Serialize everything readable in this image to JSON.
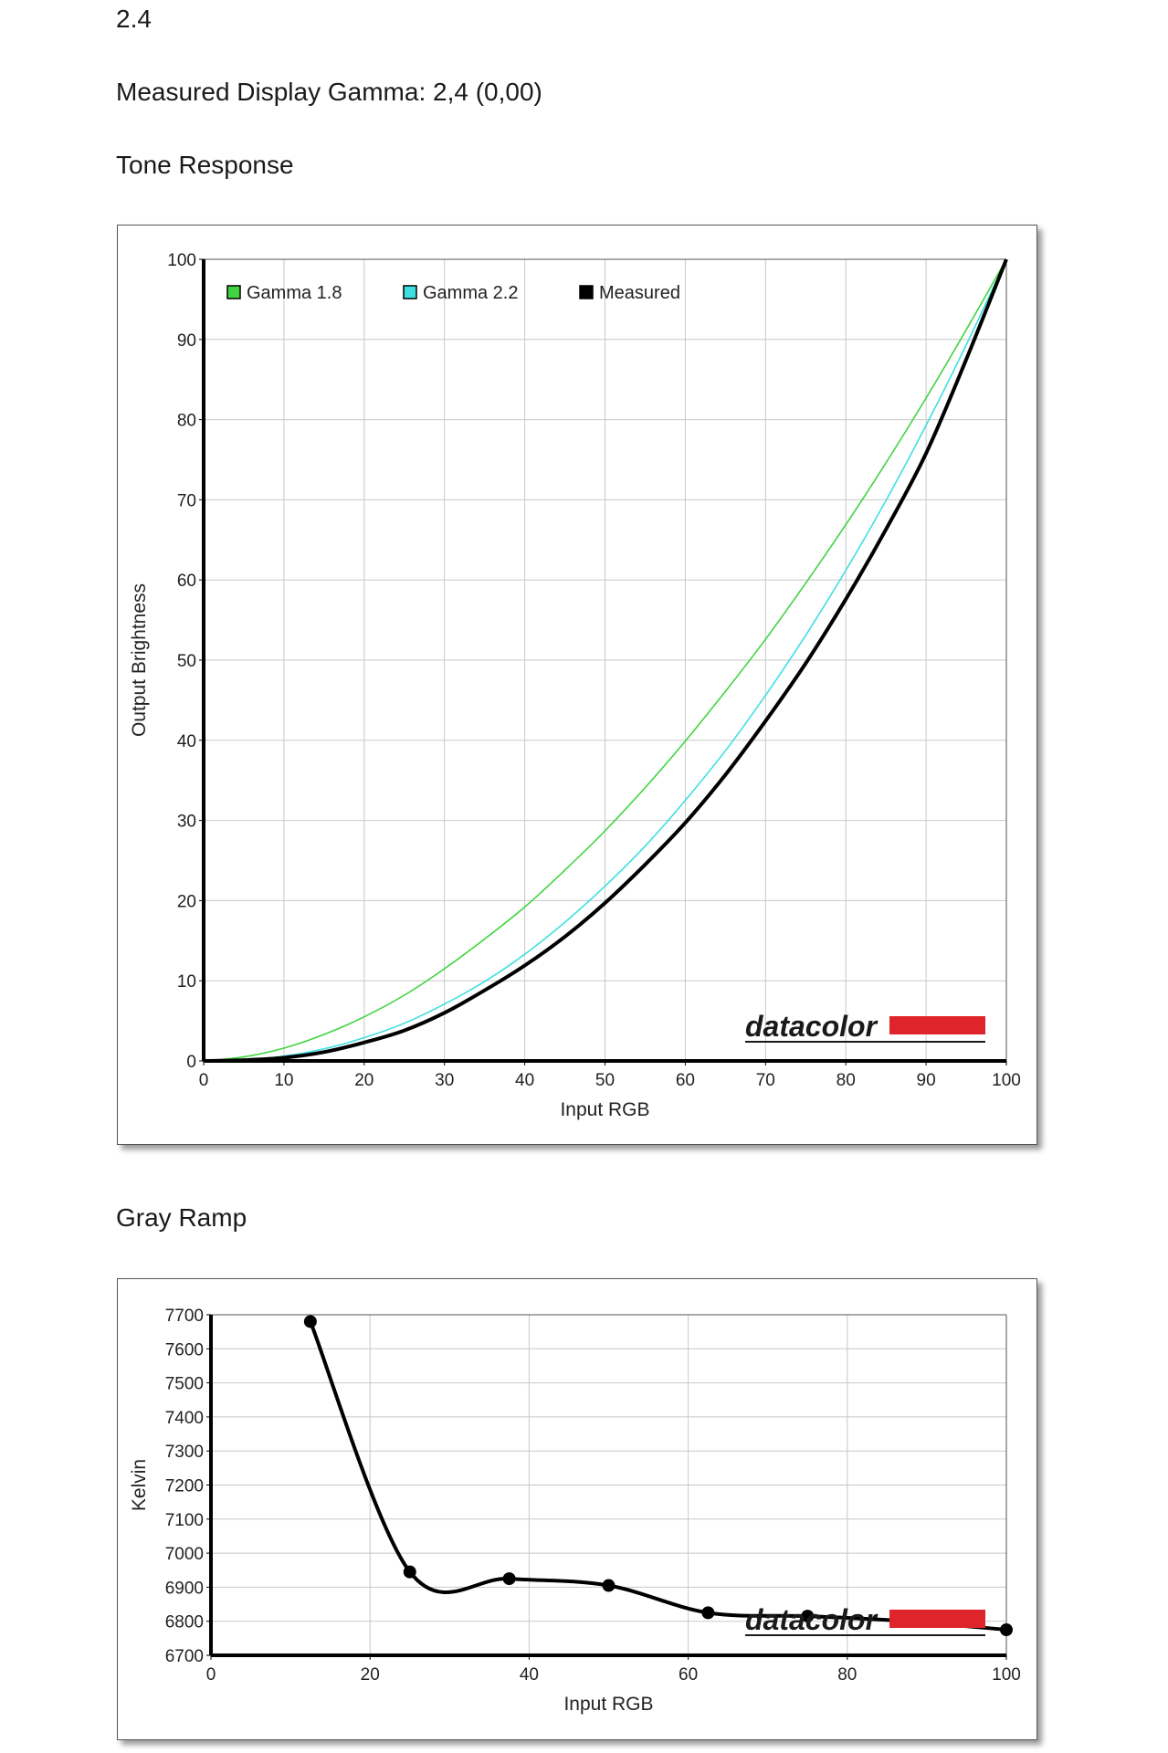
{
  "header": {
    "gamma_value": "2.4",
    "measured_text": "Measured Display Gamma: 2,4 (0,00)",
    "tone_title": "Tone Response",
    "gray_title": "Gray Ramp"
  },
  "logo": {
    "text": "datacolor",
    "accent_color": "#e0242b"
  },
  "colors": {
    "gamma18": "#3fd43f",
    "gamma22": "#3fdfe0",
    "measured": "#000000",
    "grid": "#c8c8c8"
  },
  "chart_data": [
    {
      "type": "line",
      "title": "Tone Response",
      "xlabel": "Input RGB",
      "ylabel": "Output Brightness",
      "xlim": [
        0,
        100
      ],
      "ylim": [
        0,
        100
      ],
      "xticks": [
        "0",
        "10",
        "20",
        "30",
        "40",
        "50",
        "60",
        "70",
        "80",
        "90",
        "100"
      ],
      "yticks": [
        "0",
        "10",
        "20",
        "30",
        "40",
        "50",
        "60",
        "70",
        "80",
        "90",
        "100"
      ],
      "grid": true,
      "legend": "top-left",
      "series": [
        {
          "name": "Gamma 1.8",
          "color": "#3fd43f",
          "x": [
            0,
            5,
            10,
            15,
            20,
            25,
            30,
            35,
            40,
            45,
            50,
            55,
            60,
            65,
            70,
            75,
            80,
            85,
            90,
            95,
            100
          ],
          "y": [
            0,
            0.5,
            1.6,
            3.3,
            5.5,
            8.2,
            11.5,
            15.2,
            19.2,
            23.8,
            28.7,
            34.1,
            39.9,
            46.1,
            52.6,
            59.6,
            66.9,
            74.6,
            82.7,
            91.2,
            100
          ]
        },
        {
          "name": "Gamma 2.2",
          "color": "#3fdfe0",
          "x": [
            0,
            5,
            10,
            15,
            20,
            25,
            30,
            35,
            40,
            45,
            50,
            55,
            60,
            65,
            70,
            75,
            80,
            85,
            90,
            95,
            100
          ],
          "y": [
            0,
            0.1,
            0.6,
            1.5,
            2.9,
            4.7,
            7.1,
            9.9,
            13.3,
            17.3,
            21.8,
            26.8,
            32.5,
            38.7,
            45.6,
            53.1,
            61.2,
            69.9,
            79.3,
            89.3,
            100
          ]
        },
        {
          "name": "Measured",
          "color": "#000000",
          "x": [
            0,
            5,
            10,
            15,
            20,
            25,
            30,
            35,
            40,
            45,
            50,
            55,
            60,
            65,
            70,
            75,
            80,
            85,
            90,
            95,
            100
          ],
          "y": [
            0,
            0.1,
            0.4,
            1.1,
            2.3,
            3.8,
            6.0,
            8.8,
            11.9,
            15.5,
            19.7,
            24.5,
            29.7,
            35.7,
            42.4,
            49.6,
            57.6,
            66.3,
            75.8,
            87.5,
            100
          ]
        }
      ]
    },
    {
      "type": "line",
      "title": "Gray Ramp",
      "xlabel": "Input RGB",
      "ylabel": "Kelvin",
      "xlim": [
        0,
        100
      ],
      "ylim": [
        6700,
        7700
      ],
      "xticks": [
        "0",
        "20",
        "40",
        "60",
        "80",
        "100"
      ],
      "yticks": [
        "6700",
        "6800",
        "6900",
        "7000",
        "7100",
        "7200",
        "7300",
        "7400",
        "7500",
        "7600",
        "7700"
      ],
      "grid": true,
      "series": [
        {
          "name": "",
          "color": "#000000",
          "x": [
            12.5,
            25,
            37.5,
            50,
            62.5,
            75,
            87.5,
            100
          ],
          "y": [
            7680,
            6945,
            6925,
            6905,
            6825,
            6815,
            6800,
            6775
          ]
        }
      ]
    }
  ]
}
